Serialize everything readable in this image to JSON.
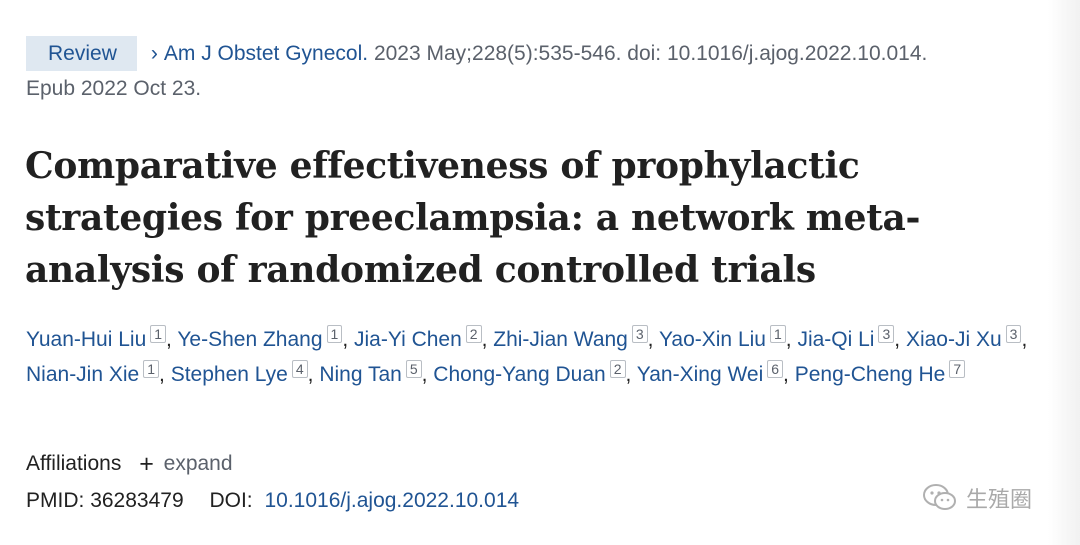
{
  "citation": {
    "badge": "Review",
    "journal": "Am J Obstet Gynecol.",
    "details": "2023 May;228(5):535-546. doi: 10.1016/j.ajog.2022.10.014.",
    "epub": "Epub 2022 Oct 23."
  },
  "title": "Comparative effectiveness of prophylactic strategies for preeclampsia: a network meta-analysis of randomized controlled trials",
  "authors": [
    {
      "name": "Yuan-Hui Liu",
      "aff": "1"
    },
    {
      "name": "Ye-Shen Zhang",
      "aff": "1"
    },
    {
      "name": "Jia-Yi Chen",
      "aff": "2"
    },
    {
      "name": "Zhi-Jian Wang",
      "aff": "3"
    },
    {
      "name": "Yao-Xin Liu",
      "aff": "1"
    },
    {
      "name": "Jia-Qi Li",
      "aff": "3"
    },
    {
      "name": "Xiao-Ji Xu",
      "aff": "3"
    },
    {
      "name": "Nian-Jin Xie",
      "aff": "1"
    },
    {
      "name": "Stephen Lye",
      "aff": "4"
    },
    {
      "name": "Ning Tan",
      "aff": "5"
    },
    {
      "name": "Chong-Yang Duan",
      "aff": "2"
    },
    {
      "name": "Yan-Xing Wei",
      "aff": "6"
    },
    {
      "name": "Peng-Cheng He",
      "aff": "7"
    }
  ],
  "affiliations": {
    "label": "Affiliations",
    "expand": "expand"
  },
  "ids": {
    "pmid_label": "PMID:",
    "pmid": "36283479",
    "doi_label": "DOI:",
    "doi": "10.1016/j.ajog.2022.10.014"
  },
  "watermark": {
    "text": "生殖圈",
    "icon": "wechat-icon"
  },
  "colors": {
    "link": "#205493",
    "badge_bg": "#dfe8f1",
    "muted": "#5b616b"
  }
}
